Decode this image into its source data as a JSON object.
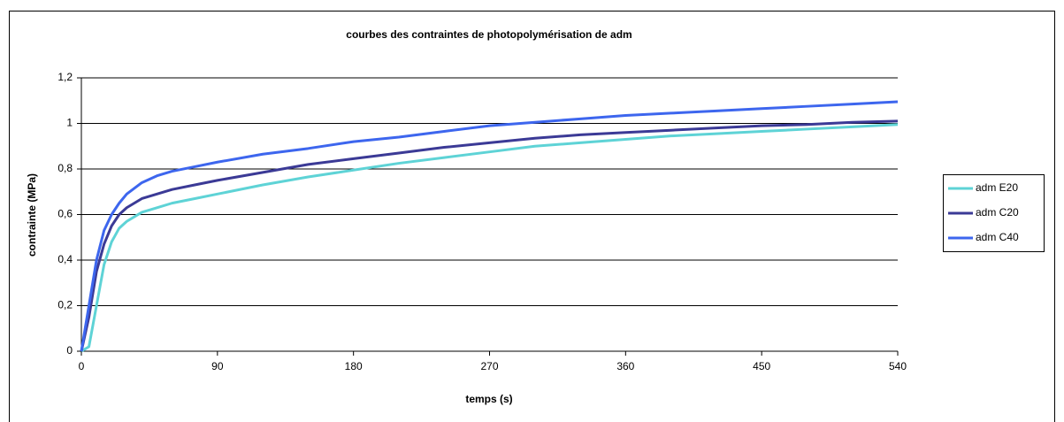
{
  "chart_data": {
    "type": "line",
    "title": "courbes des contraintes de photopolymérisation de adm",
    "xlabel": "temps (s)",
    "ylabel": "contrainte (MPa)",
    "x": [
      0,
      5,
      10,
      15,
      20,
      25,
      30,
      40,
      50,
      60,
      75,
      90,
      120,
      150,
      180,
      210,
      240,
      270,
      300,
      330,
      360,
      390,
      420,
      450,
      480,
      510,
      540
    ],
    "series": [
      {
        "name": "adm E20",
        "color": "#5ed3d6",
        "values": [
          0,
          0.02,
          0.2,
          0.38,
          0.48,
          0.54,
          0.57,
          0.61,
          0.63,
          0.65,
          0.67,
          0.69,
          0.73,
          0.765,
          0.795,
          0.825,
          0.85,
          0.875,
          0.9,
          0.915,
          0.93,
          0.945,
          0.955,
          0.965,
          0.975,
          0.985,
          0.995
        ]
      },
      {
        "name": "adm C20",
        "color": "#3b3a96",
        "values": [
          0,
          0.15,
          0.35,
          0.47,
          0.55,
          0.6,
          0.63,
          0.67,
          0.69,
          0.71,
          0.73,
          0.75,
          0.785,
          0.82,
          0.845,
          0.87,
          0.895,
          0.915,
          0.935,
          0.95,
          0.96,
          0.97,
          0.98,
          0.99,
          0.995,
          1.005,
          1.01
        ]
      },
      {
        "name": "adm C40",
        "color": "#3d66ee",
        "values": [
          0,
          0.2,
          0.4,
          0.53,
          0.6,
          0.65,
          0.69,
          0.74,
          0.77,
          0.79,
          0.81,
          0.83,
          0.865,
          0.89,
          0.92,
          0.94,
          0.965,
          0.99,
          1.005,
          1.02,
          1.035,
          1.045,
          1.055,
          1.065,
          1.075,
          1.085,
          1.095
        ]
      }
    ],
    "xlim": [
      0,
      540
    ],
    "xticks": [
      0,
      90,
      180,
      270,
      360,
      450,
      540
    ],
    "ylim": [
      0,
      1.2
    ],
    "yticks": [
      0,
      {
        "value": 0.2,
        "label": "0,2"
      },
      {
        "value": 0.4,
        "label": "0,4"
      },
      {
        "value": 0.6,
        "label": "0,6"
      },
      {
        "value": 0.8,
        "label": "0,8"
      },
      1,
      {
        "value": 1.2,
        "label": "1,2"
      }
    ],
    "grid": true,
    "legend": "right"
  }
}
